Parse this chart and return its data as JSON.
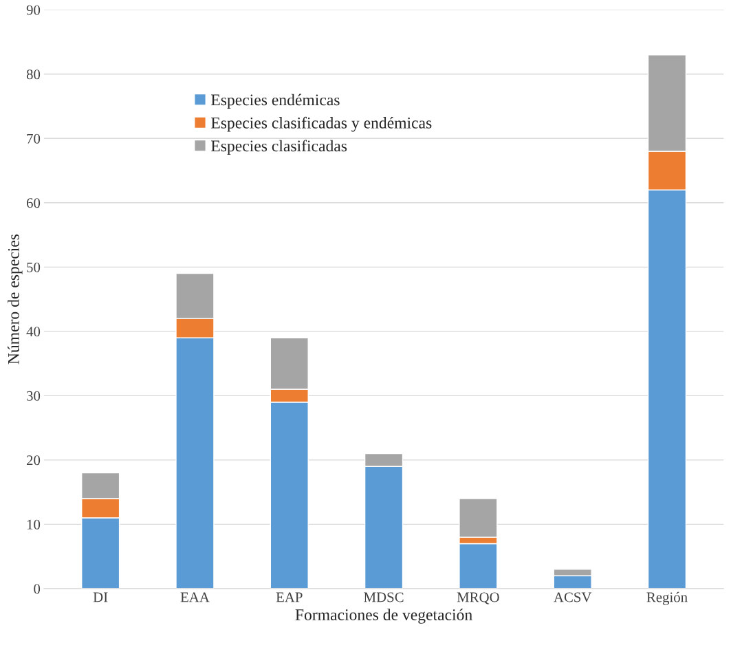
{
  "chart_data": {
    "type": "bar",
    "stacked": true,
    "xlabel": "Formaciones de vegetación",
    "ylabel": "Número de especies",
    "categories": [
      "DI",
      "EAA",
      "EAP",
      "MDSC",
      "MRQO",
      "ACSV",
      "Región"
    ],
    "series": [
      {
        "name": "Especies endémicas",
        "color": "#5b9bd5",
        "values": [
          11,
          39,
          29,
          19,
          7,
          2,
          62
        ]
      },
      {
        "name": "Especies clasificadas y endémicas",
        "color": "#ed7d31",
        "values": [
          3,
          3,
          2,
          0,
          1,
          0,
          6
        ]
      },
      {
        "name": "Especies clasificadas",
        "color": "#a5a5a5",
        "values": [
          4,
          7,
          8,
          2,
          6,
          1,
          15
        ]
      }
    ],
    "ylim": [
      0,
      90
    ],
    "yticks": [
      0,
      10,
      20,
      30,
      40,
      50,
      60,
      70,
      80,
      90
    ],
    "grid": "y",
    "legend": "top left"
  }
}
